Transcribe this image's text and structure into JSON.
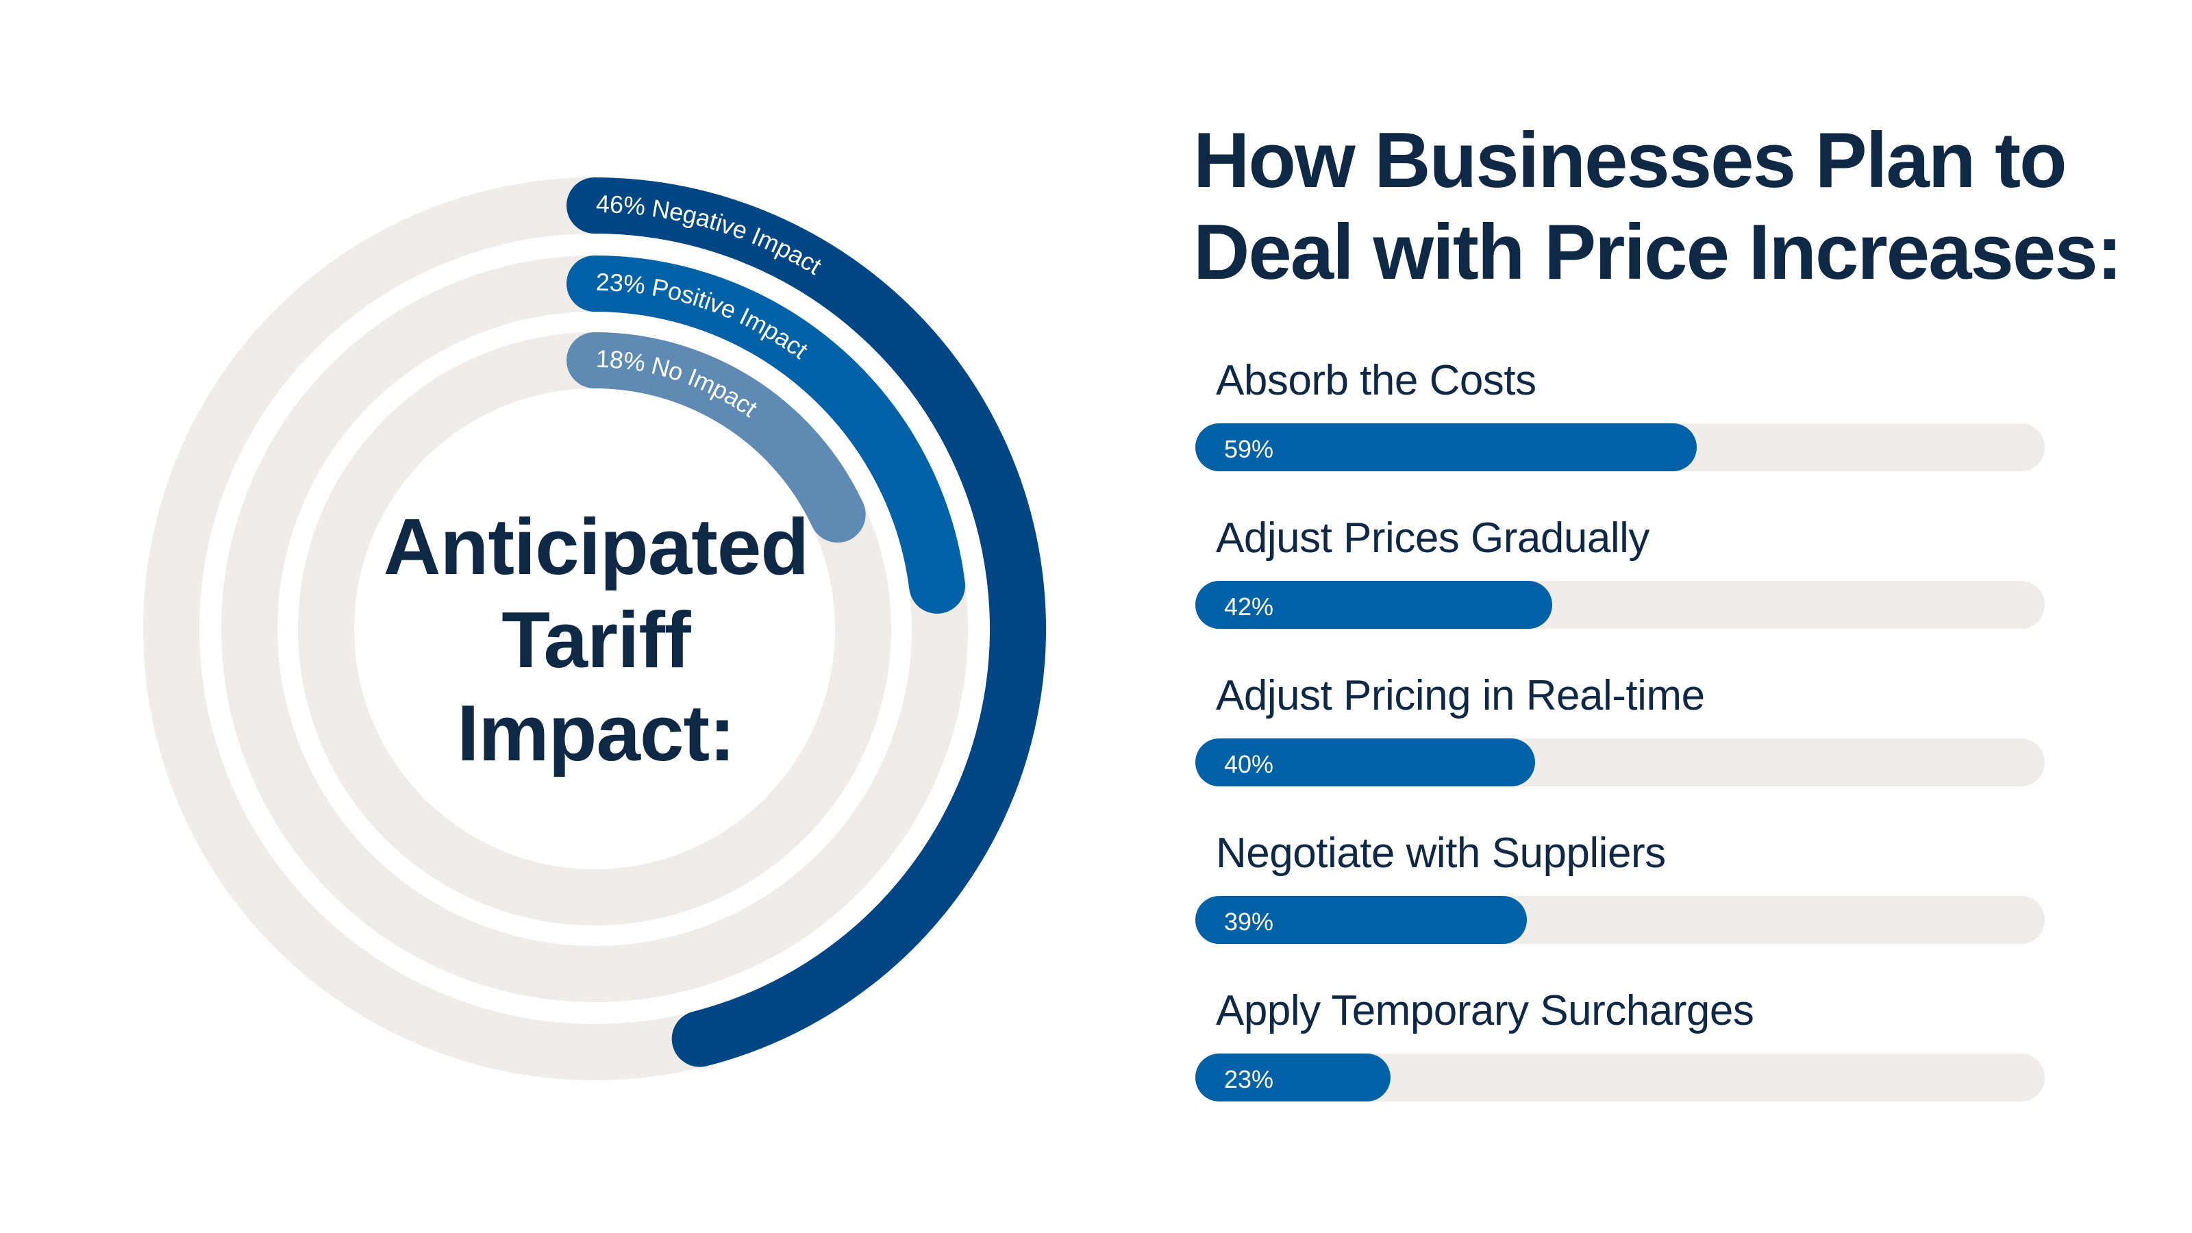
{
  "colors": {
    "track": "#f0ece9",
    "title": "#0f2846",
    "negative": "#004685",
    "positive": "#0061a6",
    "none": "#5e8ab4",
    "bar": "#0061a6"
  },
  "chart_data": [
    {
      "type": "radial-bar",
      "title_lines": [
        "Anticipated",
        "Tariff",
        "Impact:"
      ],
      "max": 100,
      "series": [
        {
          "label": "46% Negative Impact",
          "value": 46,
          "color": "#004685"
        },
        {
          "label": "23% Positive Impact",
          "value": 23,
          "color": "#0061a6"
        },
        {
          "label": "18%  No Impact",
          "value": 18,
          "color": "#5e8ab4"
        }
      ]
    },
    {
      "type": "bar",
      "orientation": "horizontal",
      "title_lines": [
        "How Businesses Plan to",
        "Deal with Price Increases:"
      ],
      "xlim": [
        0,
        100
      ],
      "categories": [
        "Absorb the Costs",
        "Adjust Prices Gradually",
        "Adjust Pricing in Real-time",
        "Negotiate with Suppliers",
        "Apply Temporary Surcharges"
      ],
      "values": [
        59,
        42,
        40,
        39,
        23
      ],
      "value_labels": [
        "59%",
        "42%",
        "40%",
        "39%",
        "23%"
      ]
    }
  ]
}
